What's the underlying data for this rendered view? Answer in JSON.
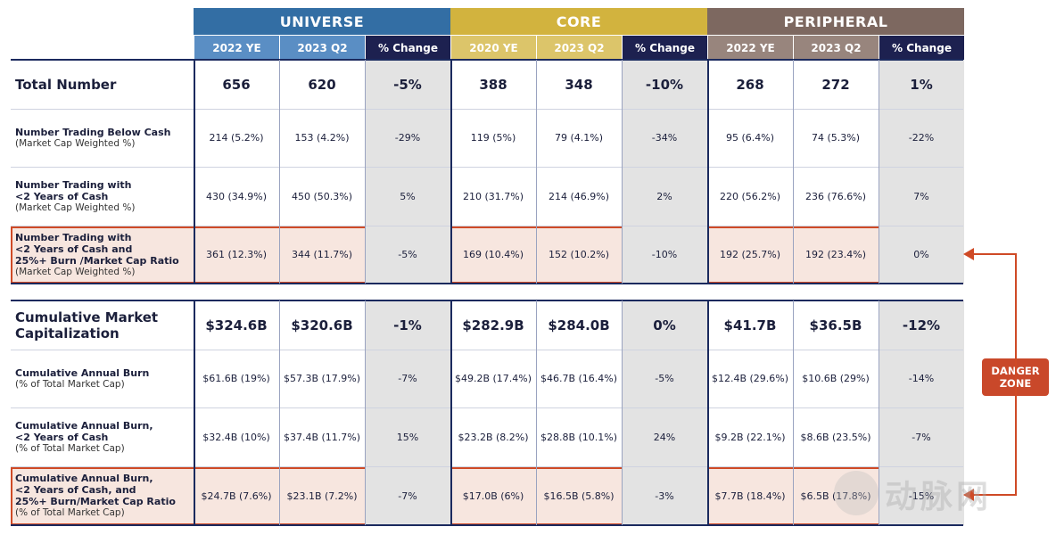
{
  "groups": [
    {
      "label": "UNIVERSE",
      "color": "#336ea4",
      "sub_color": "#5a8ec4",
      "cols": [
        "2022 YE",
        "2023 Q2"
      ]
    },
    {
      "label": "CORE",
      "color": "#d2b33e",
      "sub_color": "#dcc56a",
      "cols": [
        "2020 YE",
        "2023 Q2"
      ]
    },
    {
      "label": "PERIPHERAL",
      "color": "#7d6860",
      "sub_color": "#98857d",
      "cols": [
        "2022 YE",
        "2023 Q2"
      ]
    }
  ],
  "change_label": "% Change",
  "change_color": "#1d2150",
  "rows": [
    {
      "title": "Total Number",
      "sub": "",
      "big": true,
      "values": [
        "656",
        "620",
        "-5%",
        "388",
        "348",
        "-10%",
        "268",
        "272",
        "1%"
      ]
    },
    {
      "title": "Number Trading Below Cash",
      "sub": "(Market Cap Weighted %)",
      "values": [
        "214 (5.2%)",
        "153 (4.2%)",
        "-29%",
        "119 (5%)",
        "79 (4.1%)",
        "-34%",
        "95 (6.4%)",
        "74 (5.3%)",
        "-22%"
      ]
    },
    {
      "title": "Number Trading with\n<2 Years of Cash",
      "sub": "(Market Cap Weighted %)",
      "values": [
        "430 (34.9%)",
        "450 (50.3%)",
        "5%",
        "210 (31.7%)",
        "214 (46.9%)",
        "2%",
        "220 (56.2%)",
        "236 (76.6%)",
        "7%"
      ]
    },
    {
      "title": "Number Trading with\n<2 Years of Cash and\n25%+ Burn /Market Cap Ratio",
      "sub": "(Market Cap Weighted %)",
      "highlight": true,
      "values": [
        "361 (12.3%)",
        "344 (11.7%)",
        "-5%",
        "169 (10.4%)",
        "152 (10.2%)",
        "-10%",
        "192 (25.7%)",
        "192 (23.4%)",
        "0%"
      ]
    },
    {
      "title": "Cumulative Market\nCapitalization",
      "sub": "",
      "big": true,
      "values": [
        "$324.6B",
        "$320.6B",
        "-1%",
        "$282.9B",
        "$284.0B",
        "0%",
        "$41.7B",
        "$36.5B",
        "-12%"
      ]
    },
    {
      "title": "Cumulative Annual Burn",
      "sub": "(% of Total Market Cap)",
      "values": [
        "$61.6B (19%)",
        "$57.3B (17.9%)",
        "-7%",
        "$49.2B (17.4%)",
        "$46.7B (16.4%)",
        "-5%",
        "$12.4B (29.6%)",
        "$10.6B (29%)",
        "-14%"
      ]
    },
    {
      "title": "Cumulative Annual Burn,\n<2 Years of Cash",
      "sub": "(% of Total Market Cap)",
      "values": [
        "$32.4B (10%)",
        "$37.4B (11.7%)",
        "15%",
        "$23.2B (8.2%)",
        "$28.8B (10.1%)",
        "24%",
        "$9.2B (22.1%)",
        "$8.6B (23.5%)",
        "-7%"
      ]
    },
    {
      "title": "Cumulative Annual Burn,\n<2 Years of Cash, and\n25%+ Burn/Market Cap Ratio",
      "sub": "(% of Total Market Cap)",
      "highlight": true,
      "values": [
        "$24.7B (7.6%)",
        "$23.1B (7.2%)",
        "-7%",
        "$17.0B (6%)",
        "$16.5B (5.8%)",
        "-3%",
        "$7.7B (18.4%)",
        "$6.5B (17.8%)",
        "-15%"
      ]
    }
  ],
  "danger_zone": [
    "DANGER",
    "ZONE"
  ],
  "accent": "#cf4a26",
  "watermark": "动脉网"
}
